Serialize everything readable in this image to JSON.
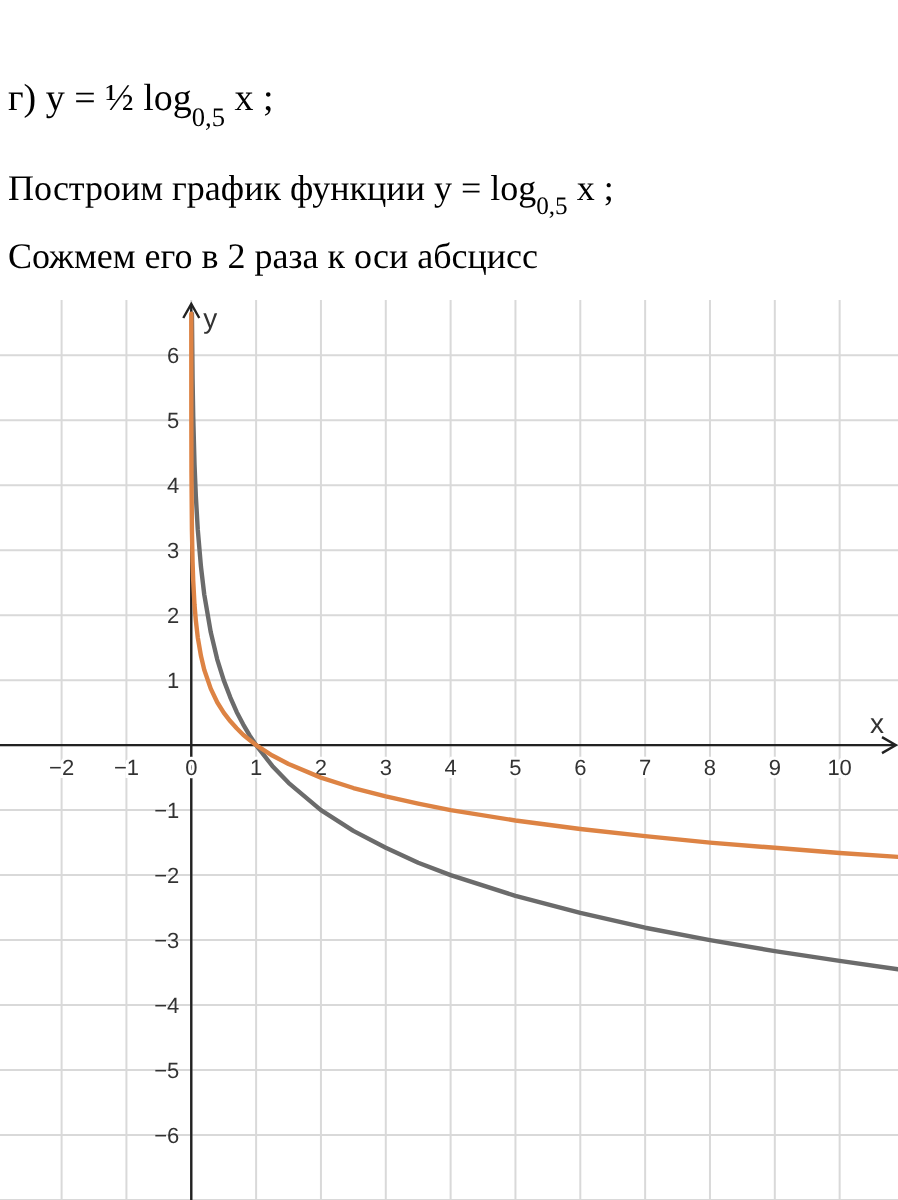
{
  "chart_data": {
    "type": "line",
    "title": "г) y = ½ log$_{0,5}$ x ;",
    "subtitle": "Построим график функции y = log$_{0,5}$ x ;",
    "annotations": [
      "Сожмем его в 2 раза к оси абсцисс"
    ],
    "xlabel": "x",
    "ylabel": "y",
    "xlim": [
      -2.95,
      10.9
    ],
    "ylim": [
      -7,
      6.85
    ],
    "xticks": [
      -2,
      -1,
      0,
      1,
      2,
      3,
      4,
      5,
      6,
      7,
      8,
      9,
      10
    ],
    "yticks": [
      -6,
      -5,
      -4,
      -3,
      -2,
      -1,
      1,
      2,
      3,
      4,
      5,
      6
    ],
    "grid": true,
    "marker": "none",
    "line_style": "solid",
    "series": [
      {
        "color": "#6b6b6b",
        "x": [
          0.01,
          0.02,
          0.03,
          0.05,
          0.07,
          0.1,
          0.15,
          0.2,
          0.3,
          0.4,
          0.5,
          0.6,
          0.7,
          0.8,
          0.9,
          1,
          1.25,
          1.5,
          2,
          2.5,
          3,
          3.5,
          4,
          5,
          6,
          7,
          8,
          9,
          10,
          10.9
        ],
        "values": [
          6.64,
          5.64,
          5.06,
          4.32,
          3.84,
          3.32,
          2.74,
          2.32,
          1.74,
          1.32,
          1,
          0.74,
          0.51,
          0.32,
          0.15,
          0,
          -0.32,
          -0.58,
          -1,
          -1.32,
          -1.58,
          -1.81,
          -2,
          -2.32,
          -2.58,
          -2.81,
          -3,
          -3.17,
          -3.32,
          -3.45
        ]
      },
      {
        "color": "#dd8344",
        "x": [
          0.0001,
          0.001,
          0.003,
          0.01,
          0.02,
          0.03,
          0.05,
          0.07,
          0.1,
          0.15,
          0.2,
          0.3,
          0.4,
          0.5,
          0.6,
          0.7,
          0.8,
          0.9,
          1,
          1.25,
          1.5,
          2,
          2.5,
          3,
          3.5,
          4,
          5,
          6,
          7,
          8,
          9,
          10,
          10.9
        ],
        "values": [
          6.64,
          4.98,
          4.19,
          3.32,
          2.82,
          2.53,
          2.16,
          1.92,
          1.66,
          1.37,
          1.16,
          0.87,
          0.66,
          0.5,
          0.37,
          0.26,
          0.16,
          0.08,
          0,
          -0.16,
          -0.29,
          -0.5,
          -0.66,
          -0.79,
          -0.9,
          -1,
          -1.16,
          -1.29,
          -1.4,
          -1.5,
          -1.58,
          -1.66,
          -1.72
        ]
      }
    ]
  }
}
